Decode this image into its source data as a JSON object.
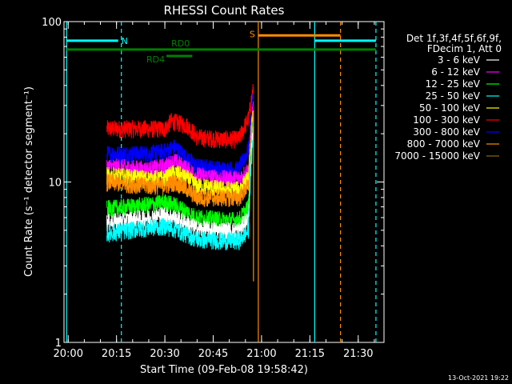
{
  "chart_data": {
    "type": "line",
    "title": "RHESSI Count Rates",
    "xlabel": "Start Time (09-Feb-08 19:58:42)",
    "ylabel": "Count Rate (s⁻¹ detector segment⁻¹)",
    "y_scale": "log",
    "ylim": [
      1,
      100
    ],
    "xlim": [
      "19:58:42",
      "21:38:00"
    ],
    "x_tick_labels": [
      "20:00",
      "20:15",
      "20:30",
      "20:45",
      "21:00",
      "21:15",
      "21:30"
    ],
    "y_tick_labels": [
      "1",
      "10",
      "100"
    ],
    "legend": {
      "position": "right",
      "header": [
        "Det 1f,3f,4f,5f,6f,9f,",
        "FDecim 1, Att 0"
      ],
      "entries": [
        {
          "label": "3 - 6 keV",
          "color": "#ffffff"
        },
        {
          "label": "6 - 12 keV",
          "color": "#ff00ff"
        },
        {
          "label": "12 - 25 keV",
          "color": "#00ff00"
        },
        {
          "label": "25 - 50 keV",
          "color": "#00ffff"
        },
        {
          "label": "50 - 100 keV",
          "color": "#ffff00"
        },
        {
          "label": "100 - 300 keV",
          "color": "#ff0000"
        },
        {
          "label": "300 - 800 keV",
          "color": "#0000ff"
        },
        {
          "label": "800 - 7000 keV",
          "color": "#ff8c00"
        },
        {
          "label": "7000 - 15000 keV",
          "color": "#8b6914"
        }
      ]
    },
    "series": [
      {
        "color": "#ff0000",
        "x": [
          "20:12",
          "20:25",
          "20:30",
          "20:32",
          "20:37",
          "20:40",
          "20:48",
          "20:53",
          "20:56",
          "20:57:30"
        ],
        "values": [
          21.5,
          21.5,
          21.5,
          24,
          22.5,
          19,
          18.5,
          18.5,
          25,
          38
        ]
      },
      {
        "color": "#0000ff",
        "x": [
          "20:12",
          "20:25",
          "20:30",
          "20:33",
          "20:37",
          "20:40",
          "20:48",
          "20:53",
          "20:56",
          "20:57:30"
        ],
        "values": [
          15,
          15,
          15.5,
          16.5,
          14,
          12.5,
          12,
          12,
          16,
          34
        ]
      },
      {
        "color": "#ff00ff",
        "x": [
          "20:12",
          "20:25",
          "20:30",
          "20:33",
          "20:37",
          "20:40",
          "20:48",
          "20:53",
          "20:56",
          "20:57:30"
        ],
        "values": [
          12.5,
          12,
          12.5,
          13.5,
          12,
          11,
          10.5,
          10.5,
          12,
          30
        ]
      },
      {
        "color": "#ffff00",
        "x": [
          "20:12",
          "20:25",
          "20:30",
          "20:33",
          "20:37",
          "20:40",
          "20:48",
          "20:53",
          "20:56",
          "20:57:30"
        ],
        "values": [
          11,
          10.5,
          10.5,
          11.5,
          10.5,
          9.5,
          9,
          9,
          10.5,
          28
        ]
      },
      {
        "color": "#ff8c00",
        "x": [
          "20:12",
          "20:25",
          "20:30",
          "20:33",
          "20:37",
          "20:40",
          "20:48",
          "20:53",
          "20:56",
          "20:57:30"
        ],
        "values": [
          10,
          9.5,
          9.5,
          10,
          9,
          8,
          8,
          8,
          9.5,
          26
        ]
      },
      {
        "color": "#00ff00",
        "x": [
          "20:12",
          "20:25",
          "20:30",
          "20:33",
          "20:37",
          "20:40",
          "20:48",
          "20:53",
          "20:56",
          "20:57:30"
        ],
        "values": [
          6.8,
          7.2,
          7.5,
          7.2,
          6.5,
          6,
          5.8,
          5.8,
          7,
          24
        ]
      },
      {
        "color": "#ffffff",
        "x": [
          "20:12",
          "20:25",
          "20:30",
          "20:33",
          "20:37",
          "20:40",
          "20:48",
          "20:53",
          "20:56",
          "20:57:30"
        ],
        "values": [
          5.6,
          6,
          6.3,
          6,
          5.5,
          5.1,
          5,
          5,
          6,
          22
        ]
      },
      {
        "color": "#00ffff",
        "x": [
          "20:12",
          "20:25",
          "20:30",
          "20:33",
          "20:37",
          "20:40",
          "20:48",
          "20:53",
          "20:56",
          "20:57:30"
        ],
        "values": [
          4.8,
          5.2,
          5.3,
          5.1,
          4.7,
          4.4,
          4.3,
          4.3,
          5,
          20
        ]
      }
    ],
    "spikes": [
      {
        "color": "#ff8c00",
        "x": "20:57:30",
        "values": [
          2.4,
          28
        ]
      }
    ],
    "markers": {
      "vertical_lines": [
        {
          "x": "19:59:30",
          "color": "#00ffff",
          "style": "solid"
        },
        {
          "x": "20:16:30",
          "color": "#00ffff",
          "style": "dashed"
        },
        {
          "x": "20:59:00",
          "color": "#ff8c00",
          "style": "solid"
        },
        {
          "x": "21:16:30",
          "color": "#00ffff",
          "style": "solid"
        },
        {
          "x": "21:24:30",
          "color": "#ff8c00",
          "style": "dashed"
        },
        {
          "x": "21:35:30",
          "color": "#00ffff",
          "style": "dashed"
        }
      ],
      "bars": [
        {
          "label": "N",
          "color": "#00ffff",
          "x0": "19:59:30",
          "x1": "20:15:30",
          "y": 76
        },
        {
          "label": "",
          "color": "#00ffff",
          "x0": "21:16:30",
          "x1": "21:35:30",
          "y": 76
        },
        {
          "label": "S",
          "color": "#ff8c00",
          "x0": "20:59:00",
          "x1": "21:24:30",
          "y": 82
        },
        {
          "label": "RD0",
          "color": "#008000",
          "x0": "19:59:30",
          "x1": "21:35:30",
          "y": 67
        },
        {
          "label": "RD4",
          "color": "#008000",
          "x0": "20:30:30",
          "x1": "20:38:30",
          "y": 61
        }
      ]
    },
    "timestamp": "13-Oct-2021 19:22"
  }
}
